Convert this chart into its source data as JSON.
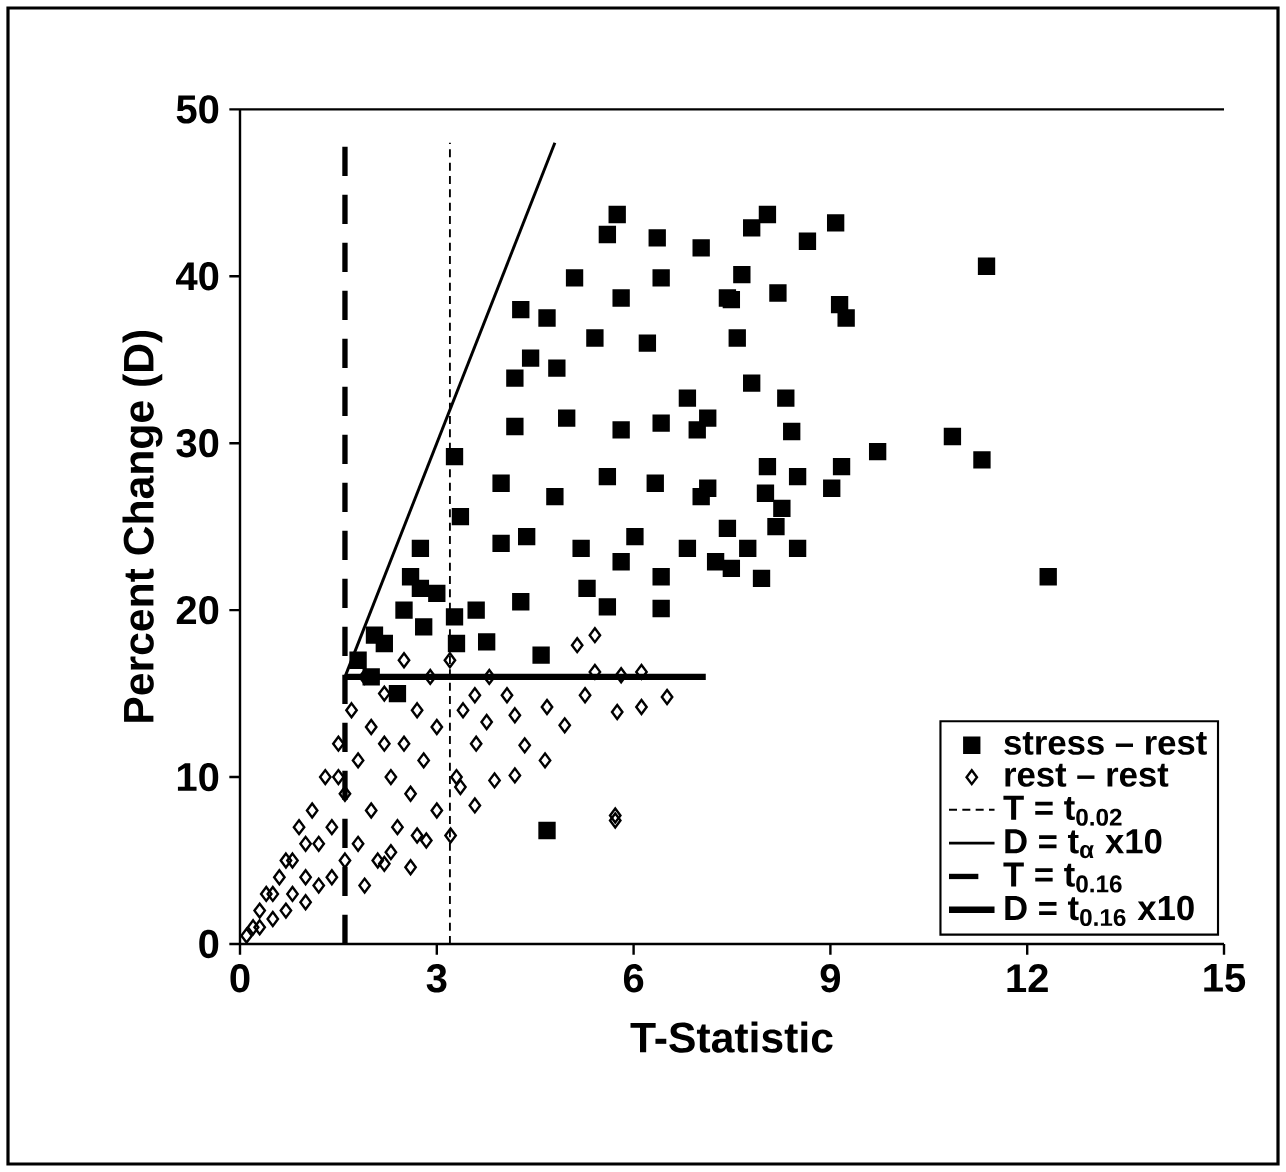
{
  "chart_data": {
    "type": "scatter",
    "xlabel": "T-Statistic",
    "ylabel": "Percent Change (D)",
    "xlim": [
      0,
      15
    ],
    "xticks": [
      0,
      3,
      6,
      9,
      12,
      15
    ],
    "ylim": [
      0,
      50
    ],
    "yticks": [
      0,
      10,
      20,
      30,
      40,
      50
    ],
    "grid": false,
    "legend": "bottom right",
    "series": [
      {
        "name": "stress – rest",
        "marker": "square",
        "color": "#000000",
        "x": [
          5.75,
          5.6,
          6.36,
          7.03,
          5.1,
          4.28,
          4.68,
          5.81,
          6.42,
          7.43,
          4.43,
          4.83,
          4.19,
          5.41,
          6.21,
          6.82,
          7.13,
          4.19,
          4.98,
          5.81,
          6.42,
          3.27,
          3.98,
          4.8,
          5.6,
          6.33,
          7.03,
          3.36,
          4.37,
          5.2,
          6.02,
          6.82,
          2.75,
          7.43,
          8.04,
          7.8,
          9.08,
          8.65,
          11.38,
          7.65,
          8.2,
          7.49,
          9.14,
          9.24,
          7.58,
          7.8,
          8.32,
          6.97,
          8.41,
          10.86,
          9.72,
          11.31,
          9.17,
          9.02,
          8.04,
          8.5,
          7.13,
          8.01,
          8.26,
          8.17,
          7.74,
          8.5,
          7.49,
          12.32,
          3.98,
          5.81,
          6.42,
          5.29,
          6.42,
          5.6,
          2.75,
          3.27,
          4.28,
          4.59,
          3.76,
          2.05,
          4.68,
          7.25,
          7.95,
          2.0,
          2.2,
          2.5,
          2.8,
          3.0,
          2.4,
          3.3,
          3.6,
          1.8,
          2.6
        ],
        "values": [
          43.7,
          42.5,
          42.3,
          41.7,
          39.9,
          38.0,
          37.5,
          38.7,
          39.9,
          38.7,
          35.1,
          34.5,
          33.9,
          36.3,
          36.0,
          32.7,
          31.5,
          31.0,
          31.5,
          30.8,
          31.2,
          29.2,
          27.6,
          26.8,
          28.0,
          27.6,
          26.8,
          25.6,
          24.4,
          23.7,
          24.4,
          23.7,
          23.7,
          24.9,
          43.7,
          42.9,
          43.2,
          42.1,
          40.6,
          40.1,
          39.0,
          38.6,
          38.3,
          37.5,
          36.3,
          33.6,
          32.7,
          30.8,
          30.7,
          30.4,
          29.5,
          29.0,
          28.6,
          27.3,
          28.6,
          28.0,
          27.3,
          27.0,
          26.1,
          25.0,
          23.7,
          23.7,
          22.5,
          22.0,
          24.0,
          22.9,
          22.0,
          21.3,
          20.1,
          20.2,
          21.3,
          19.6,
          20.5,
          17.3,
          18.1,
          18.5,
          6.8,
          22.9,
          21.9,
          16,
          18,
          20,
          19,
          21,
          15,
          18,
          20,
          17,
          22
        ]
      },
      {
        "name": "rest – rest",
        "marker": "diamond",
        "color": "#000000",
        "x": [
          5.41,
          5.14,
          5.41,
          5.81,
          6.12,
          6.51,
          6.12,
          5.75,
          5.26,
          4.68,
          4.95,
          4.34,
          4.65,
          4.19,
          3.88,
          3.58,
          3.21,
          5.72,
          5.72,
          2.6,
          2.2,
          2.84,
          3.36,
          3.76,
          4.19,
          4.07,
          3.58,
          0.1,
          0.2,
          0.3,
          0.3,
          0.5,
          0.5,
          0.6,
          0.7,
          0.8,
          0.8,
          0.9,
          1.0,
          1.0,
          1.1,
          1.2,
          1.2,
          1.3,
          1.4,
          1.4,
          1.5,
          1.6,
          1.6,
          1.7,
          1.8,
          1.8,
          1.9,
          2.0,
          2.0,
          2.1,
          2.2,
          2.3,
          2.4,
          2.5,
          2.5,
          2.6,
          2.7,
          2.8,
          2.9,
          3.0,
          3.0,
          3.2,
          3.3,
          3.4,
          3.6,
          3.8,
          0.4,
          0.7,
          1.0,
          1.5,
          2.2,
          1.9,
          2.3,
          2.7
        ],
        "values": [
          18.5,
          17.9,
          16.3,
          16.1,
          16.3,
          14.8,
          14.2,
          13.9,
          14.9,
          14.2,
          13.1,
          11.9,
          11.0,
          10.1,
          9.8,
          8.3,
          6.5,
          7.7,
          7.4,
          4.6,
          4.8,
          6.2,
          9.4,
          13.3,
          13.7,
          14.9,
          14.9,
          0.5,
          1,
          2,
          1,
          3,
          1.5,
          4,
          2,
          5,
          3,
          7,
          4,
          2.5,
          8,
          6,
          3.5,
          10,
          7,
          4,
          12,
          9,
          5,
          14,
          11,
          6,
          16,
          13,
          8,
          5,
          15,
          10,
          7,
          17,
          12,
          9,
          14,
          11,
          16,
          8,
          13,
          17,
          10,
          14,
          12,
          16,
          3,
          5,
          6,
          10,
          12,
          3.5,
          5.5,
          6.5
        ]
      },
      {
        "name": "T = t$_{0.02}$",
        "type": "line",
        "line_style": "dashed",
        "marker": "none",
        "color": "#000000",
        "x": [
          3.2,
          3.2
        ],
        "values": [
          0,
          48
        ]
      },
      {
        "name": "D = t$_{α}$ x10",
        "type": "line",
        "line_style": "solid",
        "marker": "none",
        "color": "#000000",
        "x": [
          1.6,
          4.8
        ],
        "values": [
          16,
          48
        ]
      },
      {
        "name": "T = t$_{0.16}$",
        "type": "line",
        "line_style": "dashed",
        "marker": "none",
        "color": "#000000",
        "x": [
          1.6,
          1.6
        ],
        "values": [
          0,
          48
        ]
      },
      {
        "name": "D = t$_{0.16}$ x10",
        "type": "line",
        "line_style": "solid",
        "marker": "none",
        "color": "#000000",
        "x": [
          1.6,
          7.1
        ],
        "values": [
          16,
          16
        ]
      }
    ]
  }
}
